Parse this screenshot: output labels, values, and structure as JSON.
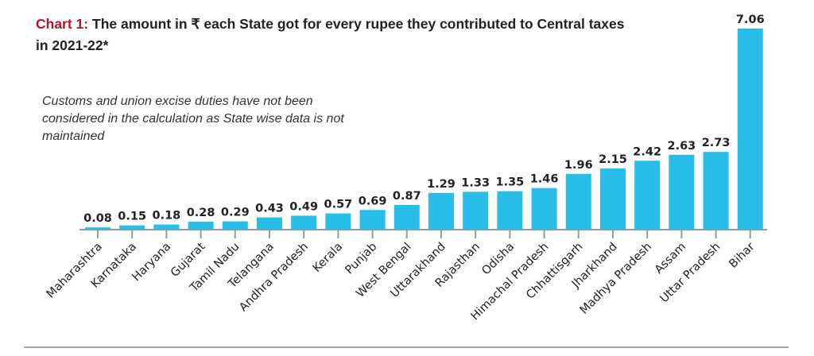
{
  "chart_data": {
    "type": "bar",
    "title_prefix": "Chart 1:",
    "title": "The amount in ₹ each State got for every rupee they contributed to Central taxes in 2021-22*",
    "note": "Customs and union excise duties have not been considered in the calculation as State wise data is not maintained",
    "categories": [
      "Maharashtra",
      "Karnataka",
      "Haryana",
      "Gujarat",
      "Tamil Nadu",
      "Telangana",
      "Andhra Pradesh",
      "Kerala",
      "Punjab",
      "West Bengal",
      "Uttarakhand",
      "Rajasthan",
      "Odisha",
      "Himachal Pradesh",
      "Chhattisgarh",
      "Jharkhand",
      "Madhya Pradesh",
      "Assam",
      "Uttar Pradesh",
      "Bihar"
    ],
    "values": [
      0.08,
      0.15,
      0.18,
      0.28,
      0.29,
      0.43,
      0.49,
      0.57,
      0.69,
      0.87,
      1.29,
      1.33,
      1.35,
      1.46,
      1.96,
      2.15,
      2.42,
      2.63,
      2.73,
      7.06
    ],
    "xlabel": "",
    "ylabel": "",
    "ylim": [
      0,
      7.06
    ],
    "grid": false,
    "bar_color": "#29bde9",
    "title_prefix_color": "#b0142a"
  }
}
